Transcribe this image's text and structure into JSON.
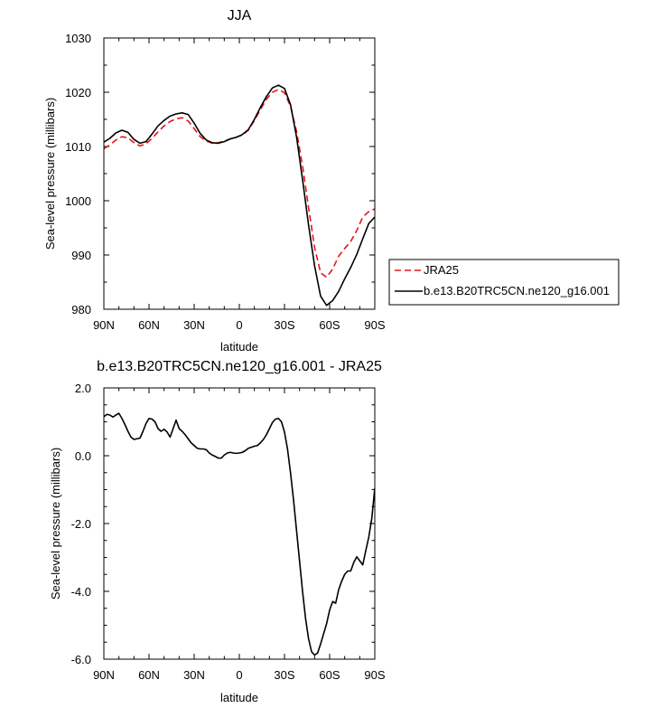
{
  "chart_data": [
    {
      "type": "line",
      "title": "JJA",
      "xlabel": "latitude",
      "ylabel": "Sea-level pressure (millibars)",
      "xlim": [
        -90,
        90
      ],
      "ylim": [
        980,
        1030
      ],
      "x_ticks": [
        -90,
        -60,
        -30,
        0,
        30,
        60,
        90
      ],
      "x_tick_labels": [
        "90N",
        "60N",
        "30N",
        "0",
        "30S",
        "60S",
        "90S"
      ],
      "y_ticks": [
        980,
        990,
        1000,
        1010,
        1020,
        1030
      ],
      "y_tick_labels": [
        "980",
        "990",
        "1000",
        "1010",
        "1020",
        "1030"
      ],
      "legend_position": "right",
      "series": [
        {
          "name": "JRA25",
          "color": "#e8141b",
          "dash": "dashed",
          "x": [
            -90,
            -86,
            -82,
            -78,
            -74,
            -70,
            -66,
            -62,
            -58,
            -54,
            -50,
            -46,
            -42,
            -38,
            -34,
            -30,
            -26,
            -22,
            -18,
            -14,
            -10,
            -6,
            -2,
            2,
            6,
            10,
            14,
            18,
            22,
            26,
            30,
            34,
            38,
            42,
            46,
            50,
            54,
            58,
            62,
            66,
            70,
            74,
            78,
            82,
            86,
            90
          ],
          "values": [
            1009.6,
            1010.3,
            1011.2,
            1011.8,
            1011.6,
            1010.7,
            1010.1,
            1010.5,
            1011.5,
            1012.7,
            1013.8,
            1014.6,
            1015.1,
            1015.3,
            1014.7,
            1013.3,
            1011.8,
            1011.0,
            1010.6,
            1010.7,
            1011.0,
            1011.4,
            1011.7,
            1012.1,
            1013.0,
            1014.8,
            1016.8,
            1018.7,
            1020.0,
            1020.5,
            1019.9,
            1017.4,
            1012.8,
            1006.4,
            998.7,
            991.4,
            986.7,
            985.9,
            987.4,
            989.8,
            991.2,
            992.5,
            994.5,
            997.0,
            998.0,
            998.5
          ]
        },
        {
          "name": "b.e13.B20TRC5CN.ne120_g16.001",
          "color": "#000000",
          "dash": "solid",
          "x": [
            -90,
            -86,
            -82,
            -78,
            -74,
            -70,
            -66,
            -62,
            -58,
            -54,
            -50,
            -46,
            -42,
            -38,
            -34,
            -30,
            -26,
            -22,
            -18,
            -14,
            -10,
            -6,
            -2,
            2,
            6,
            10,
            14,
            18,
            22,
            26,
            30,
            34,
            38,
            42,
            46,
            50,
            54,
            58,
            62,
            66,
            70,
            74,
            78,
            82,
            86,
            90
          ],
          "values": [
            1010.8,
            1011.5,
            1012.5,
            1013.0,
            1012.6,
            1011.3,
            1010.6,
            1010.9,
            1012.3,
            1013.8,
            1014.8,
            1015.6,
            1016.0,
            1016.2,
            1015.9,
            1014.3,
            1012.4,
            1011.2,
            1010.7,
            1010.6,
            1010.9,
            1011.4,
            1011.7,
            1012.2,
            1013.1,
            1015.0,
            1017.2,
            1019.2,
            1020.8,
            1021.3,
            1020.7,
            1017.7,
            1011.8,
            1003.9,
            995.5,
            988.0,
            982.4,
            980.7,
            981.6,
            983.3,
            985.6,
            987.7,
            990.1,
            993.0,
            995.8,
            997.0
          ]
        }
      ]
    },
    {
      "type": "line",
      "title": "b.e13.B20TRC5CN.ne120_g16.001 - JRA25",
      "xlabel": "latitude",
      "ylabel": "Sea-level pressure (millibars)",
      "xlim": [
        -90,
        90
      ],
      "ylim": [
        -6.0,
        2.0
      ],
      "x_ticks": [
        -90,
        -60,
        -30,
        0,
        30,
        60,
        90
      ],
      "x_tick_labels": [
        "90N",
        "60N",
        "30N",
        "0",
        "30S",
        "60S",
        "90S"
      ],
      "y_ticks": [
        -6.0,
        -4.0,
        -2.0,
        0.0,
        2.0
      ],
      "y_tick_labels": [
        "-6.0",
        "-4.0",
        "-2.0",
        "0.0",
        "2.0"
      ],
      "series": [
        {
          "color": "#000000",
          "dash": "solid",
          "x": [
            -90,
            -88,
            -86,
            -84,
            -82,
            -80,
            -78,
            -76,
            -74,
            -72,
            -70,
            -68,
            -66,
            -64,
            -62,
            -60,
            -58,
            -56,
            -54,
            -52,
            -50,
            -48,
            -46,
            -44,
            -42,
            -40,
            -38,
            -36,
            -34,
            -32,
            -30,
            -28,
            -26,
            -24,
            -22,
            -20,
            -18,
            -16,
            -14,
            -12,
            -10,
            -8,
            -6,
            -4,
            -2,
            0,
            2,
            4,
            6,
            8,
            10,
            12,
            14,
            16,
            18,
            20,
            22,
            24,
            26,
            28,
            30,
            32,
            34,
            36,
            38,
            40,
            42,
            44,
            46,
            48,
            50,
            52,
            54,
            56,
            58,
            60,
            62,
            64,
            66,
            68,
            70,
            72,
            74,
            76,
            78,
            80,
            82,
            84,
            86,
            88,
            90
          ],
          "values": [
            1.15,
            1.22,
            1.2,
            1.14,
            1.2,
            1.25,
            1.1,
            0.92,
            0.72,
            0.55,
            0.48,
            0.5,
            0.52,
            0.72,
            0.95,
            1.1,
            1.08,
            1.0,
            0.8,
            0.72,
            0.78,
            0.7,
            0.55,
            0.8,
            1.05,
            0.8,
            0.72,
            0.62,
            0.5,
            0.38,
            0.3,
            0.22,
            0.2,
            0.2,
            0.18,
            0.08,
            0.02,
            -0.02,
            -0.07,
            -0.07,
            0.02,
            0.08,
            0.1,
            0.08,
            0.07,
            0.08,
            0.1,
            0.15,
            0.22,
            0.25,
            0.28,
            0.3,
            0.38,
            0.48,
            0.62,
            0.8,
            0.98,
            1.08,
            1.1,
            1.0,
            0.7,
            0.2,
            -0.5,
            -1.3,
            -2.2,
            -3.1,
            -4.0,
            -4.8,
            -5.4,
            -5.78,
            -5.88,
            -5.82,
            -5.55,
            -5.25,
            -4.95,
            -4.55,
            -4.3,
            -4.35,
            -3.95,
            -3.7,
            -3.5,
            -3.4,
            -3.4,
            -3.15,
            -2.98,
            -3.1,
            -3.22,
            -2.8,
            -2.4,
            -1.85,
            -0.95
          ]
        }
      ]
    }
  ]
}
